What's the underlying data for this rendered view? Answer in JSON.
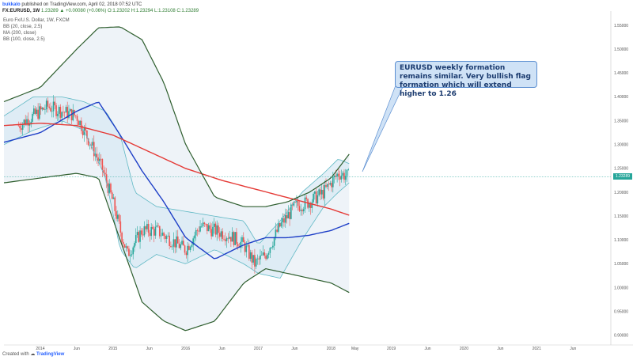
{
  "header": {
    "author": "bukkalo",
    "published": "published on TradingView.com, April 02, 2018 07:52 UTC",
    "symbol": "FX:EURUSD, 1W",
    "ohlc": "1.23289 ▲ +0.00080 (+0.06%) O:1.23202 H:1.23294 L:1.23108 C:1.23289"
  },
  "legend": [
    "Euro Fx/U.S. Dollar, 1W, FXCM",
    "BB (20, close, 2.5)",
    "MA (200, close)",
    "BB (100, close, 2.5)"
  ],
  "annotation": "EURUSD weekly formation remains similar. Very bullish flag formation which will extend higher to 1.26",
  "last_price_label": "1.23289",
  "footer": {
    "created_with": "Created with",
    "brand": "TradingView"
  },
  "colors": {
    "up": "#26a69a",
    "down": "#ef5350",
    "ma200": "#e53935",
    "bb100": "#2e5e2e",
    "bb20": "#5fb8c4",
    "ma_blue": "#1e3fc7",
    "callout_bg": "#cfe2f6"
  },
  "chart_data": {
    "type": "line",
    "title": "Euro Fx/U.S. Dollar, 1W, FXCM",
    "xlabel": "",
    "ylabel": "",
    "x_ticks": [
      "2014",
      "Jun",
      "2015",
      "Jun",
      "2016",
      "Jun",
      "2017",
      "Jun",
      "2018",
      "May",
      "2019",
      "Jun",
      "2020",
      "Jun",
      "2021",
      "Jun"
    ],
    "y_ticks": [
      0.9,
      0.95,
      1.0,
      1.05,
      1.1,
      1.15,
      1.2,
      1.25,
      1.3,
      1.35,
      1.4,
      1.45,
      1.5,
      1.55
    ],
    "ylim": [
      0.88,
      1.58
    ],
    "x": [
      2013.7,
      2013.9,
      2014.1,
      2014.3,
      2014.5,
      2014.7,
      2014.85,
      2015.0,
      2015.1,
      2015.2,
      2015.4,
      2015.6,
      2015.8,
      2016.0,
      2016.2,
      2016.4,
      2016.6,
      2016.8,
      2016.95,
      2017.1,
      2017.3,
      2017.5,
      2017.7,
      2017.9,
      2018.1,
      2018.25
    ],
    "close": [
      1.34,
      1.36,
      1.38,
      1.37,
      1.36,
      1.3,
      1.25,
      1.18,
      1.12,
      1.07,
      1.12,
      1.12,
      1.1,
      1.08,
      1.13,
      1.12,
      1.11,
      1.09,
      1.05,
      1.07,
      1.13,
      1.17,
      1.18,
      1.2,
      1.24,
      1.233
    ],
    "series": [
      {
        "name": "MA (200, close)",
        "x": [
          2013.5,
          2014.0,
          2014.5,
          2015.0,
          2015.5,
          2016.0,
          2016.5,
          2017.0,
          2017.5,
          2018.0,
          2018.25
        ],
        "values": [
          1.34,
          1.345,
          1.34,
          1.32,
          1.285,
          1.25,
          1.225,
          1.205,
          1.185,
          1.165,
          1.152
        ]
      },
      {
        "name": "BB (100, close, 2.5)",
        "x": [
          2013.5,
          2014.0,
          2014.5,
          2014.8,
          2015.1,
          2015.4,
          2015.7,
          2016.0,
          2016.4,
          2016.8,
          2017.1,
          2017.4,
          2017.7,
          2018.0,
          2018.25
        ],
        "upper": [
          1.39,
          1.42,
          1.5,
          1.545,
          1.547,
          1.52,
          1.43,
          1.3,
          1.19,
          1.17,
          1.17,
          1.18,
          1.2,
          1.23,
          1.28
        ],
        "lower": [
          1.22,
          1.23,
          1.24,
          1.23,
          1.1,
          0.97,
          0.93,
          0.91,
          0.93,
          1.01,
          1.04,
          1.03,
          1.02,
          1.01,
          0.99
        ],
        "middle": [
          1.305,
          1.325,
          1.37,
          1.39,
          1.32,
          1.245,
          1.18,
          1.105,
          1.06,
          1.09,
          1.105,
          1.105,
          1.11,
          1.12,
          1.135
        ]
      },
      {
        "name": "BB (20, close, 2.5)",
        "x": [
          2013.5,
          2013.9,
          2014.3,
          2014.6,
          2014.9,
          2015.1,
          2015.3,
          2015.6,
          2016.0,
          2016.4,
          2016.8,
          2017.0,
          2017.3,
          2017.6,
          2017.9,
          2018.1,
          2018.25
        ],
        "upper": [
          1.36,
          1.4,
          1.4,
          1.39,
          1.37,
          1.32,
          1.2,
          1.17,
          1.16,
          1.15,
          1.14,
          1.09,
          1.14,
          1.2,
          1.24,
          1.27,
          1.26
        ],
        "lower": [
          1.3,
          1.33,
          1.35,
          1.33,
          1.23,
          1.08,
          1.04,
          1.07,
          1.05,
          1.08,
          1.05,
          1.03,
          1.02,
          1.1,
          1.17,
          1.2,
          1.22
        ]
      }
    ],
    "last_price": 1.23289,
    "grid": false
  }
}
